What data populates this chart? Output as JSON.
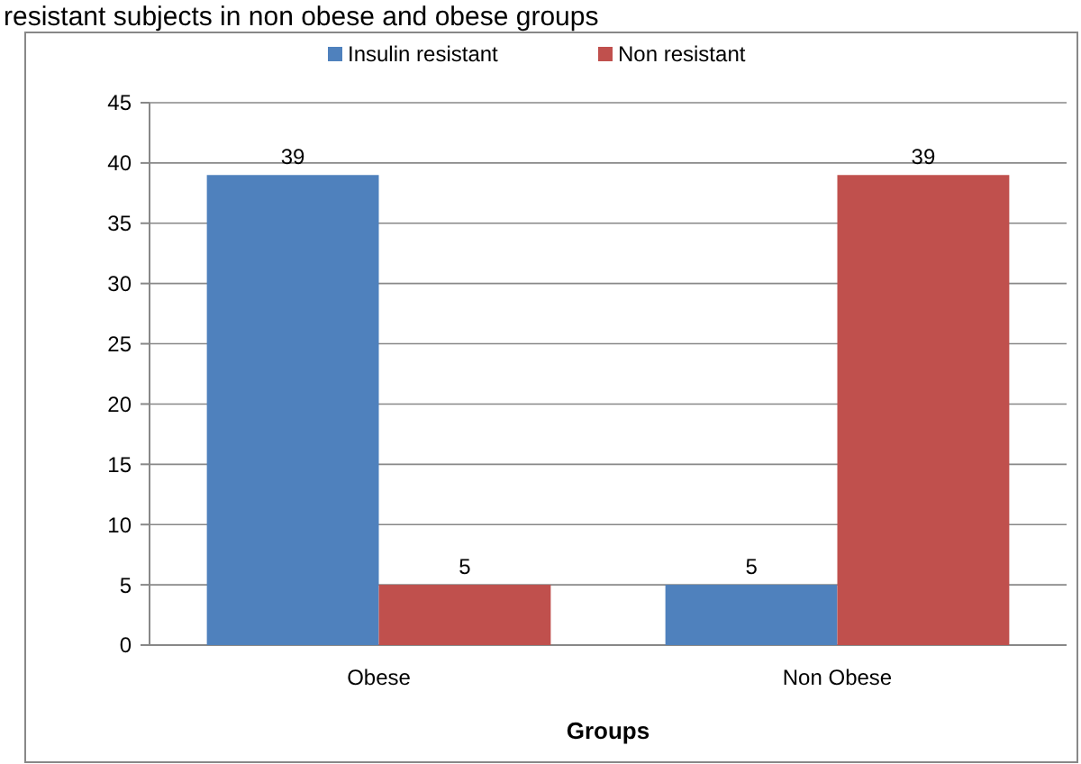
{
  "chart_data": {
    "type": "bar",
    "title": "resistant subjects in non obese and obese groups",
    "xlabel": "Groups",
    "categories": [
      "Obese",
      "Non Obese"
    ],
    "series": [
      {
        "name": "Insulin resistant",
        "color": "#4f81bd",
        "values": [
          39,
          5
        ]
      },
      {
        "name": "Non resistant",
        "color": "#c0504d",
        "values": [
          5,
          39
        ]
      }
    ],
    "ylim": [
      0,
      45
    ],
    "yticks": [
      0,
      5,
      10,
      15,
      20,
      25,
      30,
      35,
      40,
      45
    ],
    "grid": "y",
    "legend": "top",
    "data_labels": true
  }
}
